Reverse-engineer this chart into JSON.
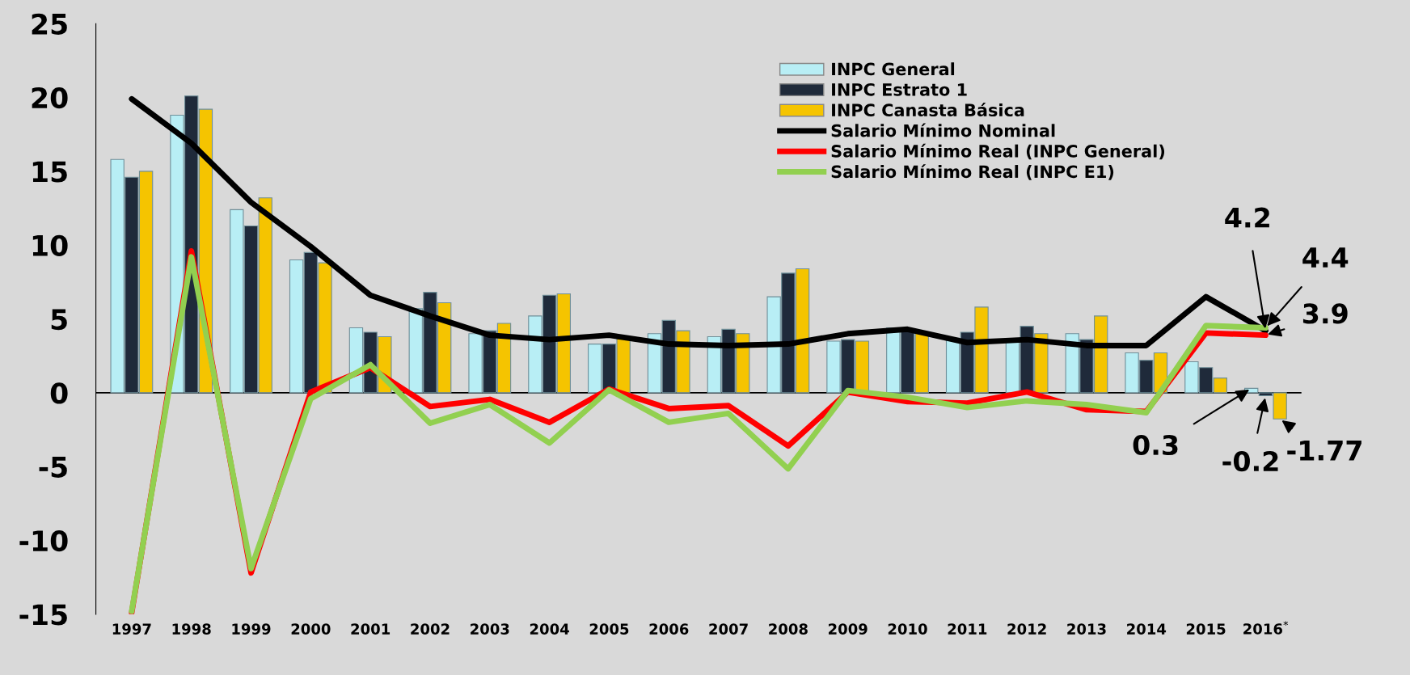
{
  "chart_data": {
    "type": "bar",
    "categories": [
      "1997",
      "1998",
      "1999",
      "2000",
      "2001",
      "2002",
      "2003",
      "2004",
      "2005",
      "2006",
      "2007",
      "2008",
      "2009",
      "2010",
      "2011",
      "2012",
      "2013",
      "2014",
      "2015",
      "2016$^{*}$"
    ],
    "series": [
      {
        "name": "INPC General",
        "color": "#b8eef5",
        "values": [
          15.8,
          18.8,
          12.4,
          9.0,
          4.4,
          5.7,
          4.0,
          5.2,
          3.3,
          4.0,
          3.8,
          6.5,
          3.5,
          4.4,
          3.7,
          3.6,
          4.0,
          2.7,
          2.1,
          0.3
        ],
        "value_labels": [
          null,
          null,
          null,
          null,
          null,
          null,
          null,
          null,
          null,
          null,
          null,
          null,
          null,
          null,
          null,
          null,
          null,
          null,
          null,
          "0.3"
        ]
      },
      {
        "name": "INPC Estrato 1",
        "color": "#1f2a3a",
        "values": [
          14.6,
          20.1,
          11.3,
          9.5,
          4.1,
          6.8,
          4.2,
          6.6,
          3.3,
          4.9,
          4.3,
          8.1,
          3.6,
          4.2,
          4.1,
          4.5,
          3.6,
          2.2,
          1.7,
          -0.2
        ],
        "value_labels": [
          null,
          null,
          null,
          null,
          null,
          null,
          null,
          null,
          null,
          null,
          null,
          null,
          null,
          null,
          null,
          null,
          null,
          null,
          null,
          "-0.2"
        ]
      },
      {
        "name": "INPC Canasta Básica",
        "color": "#f5c400",
        "values": [
          15.0,
          19.2,
          13.2,
          8.8,
          3.8,
          6.1,
          4.7,
          6.7,
          3.7,
          4.2,
          4.0,
          8.4,
          3.5,
          4.1,
          5.8,
          4.0,
          5.2,
          2.7,
          1.0,
          -1.77
        ],
        "value_labels": [
          null,
          null,
          null,
          null,
          null,
          null,
          null,
          null,
          null,
          null,
          null,
          null,
          null,
          null,
          null,
          null,
          null,
          null,
          null,
          "-1.77"
        ]
      },
      {
        "name": "Salario Mínimo Nominal",
        "type": "line",
        "color": "#000000",
        "values": [
          19.9,
          16.9,
          12.9,
          9.9,
          6.6,
          5.2,
          3.9,
          3.6,
          3.9,
          3.3,
          3.2,
          3.3,
          4.0,
          4.3,
          3.4,
          3.6,
          3.2,
          3.2,
          6.5,
          4.2
        ]
      },
      {
        "name": "Salario Mínimo Real (INPC General)",
        "type": "line",
        "color": "#ff0000",
        "values": [
          -14.9,
          9.6,
          -12.2,
          0.05,
          1.7,
          -0.93,
          -0.45,
          -2.0,
          0.25,
          -1.07,
          -0.87,
          -3.6,
          0.05,
          -0.6,
          -0.7,
          0.05,
          -1.15,
          -1.27,
          4.05,
          3.9
        ]
      },
      {
        "name": "Salario Mínimo Real (INPC E1)",
        "type": "line",
        "color": "#92d050",
        "values": [
          -14.8,
          9.2,
          -11.9,
          -0.4,
          1.9,
          -2.06,
          -0.8,
          -3.4,
          0.2,
          -2.0,
          -1.4,
          -5.15,
          0.15,
          -0.3,
          -1.0,
          -0.55,
          -0.8,
          -1.35,
          4.55,
          4.4
        ]
      }
    ],
    "ylim": [
      -15,
      25
    ],
    "yticks": [
      -15,
      -10,
      -5,
      0,
      5,
      10,
      15,
      20,
      25
    ],
    "ref_lines": [
      {
        "axis": "y",
        "value": 0,
        "color": "#000000"
      }
    ],
    "annotations": [
      {
        "text": "4.2",
        "x": "2016$^{*}$",
        "y": 4.2
      },
      {
        "text": "4.4",
        "x": "2016$^{*}$",
        "y": 4.4
      },
      {
        "text": "3.9",
        "x": "2016$^{*}$",
        "y": 3.9
      }
    ],
    "grid": false,
    "legend": "top right"
  }
}
